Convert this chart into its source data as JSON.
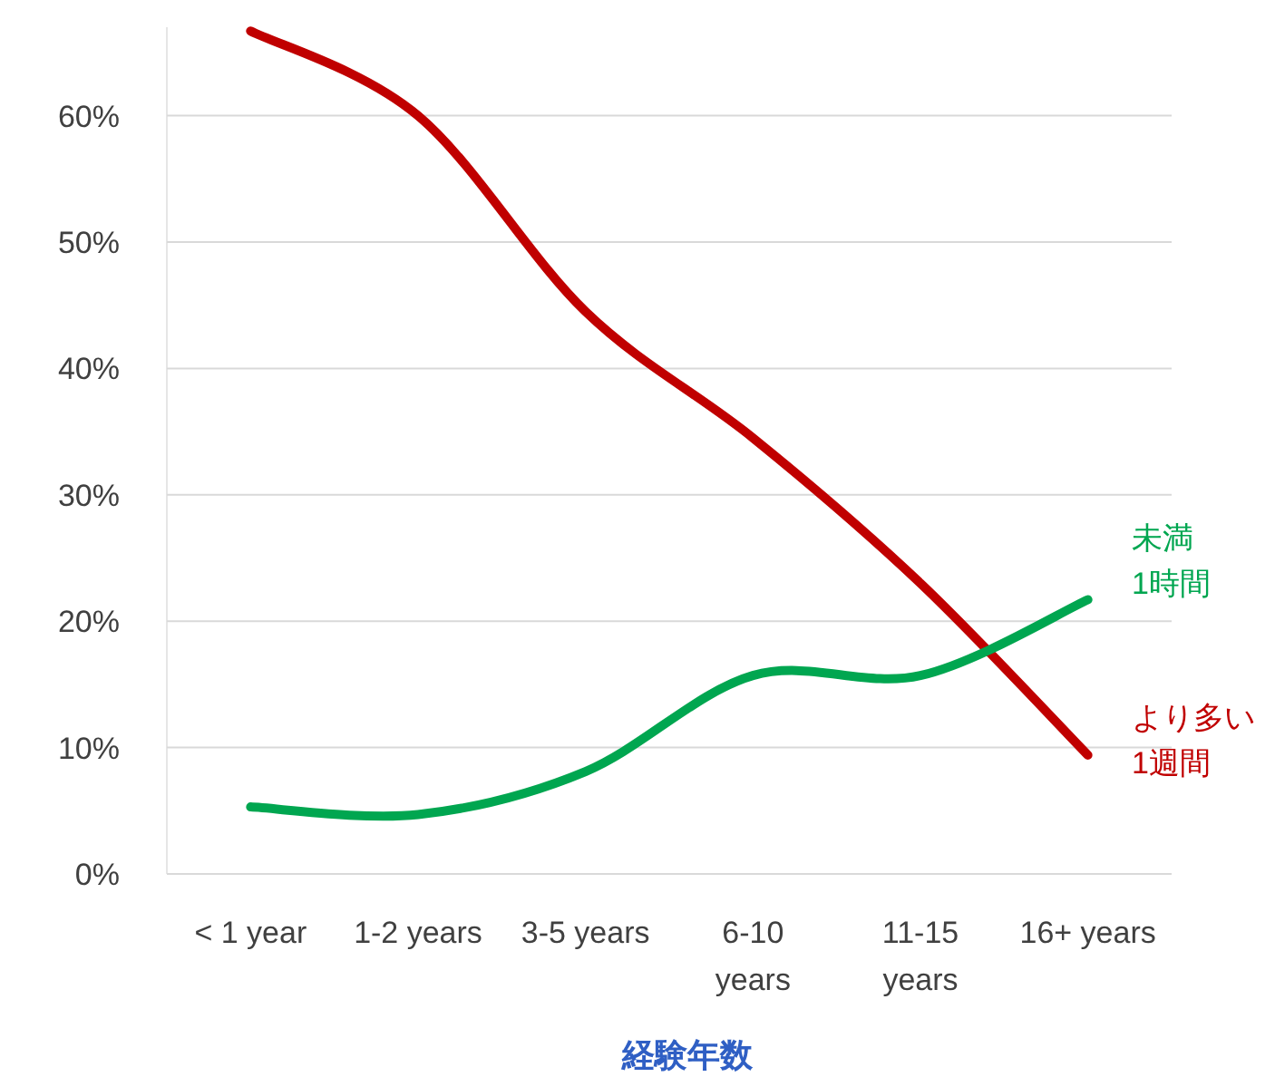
{
  "chart_data": {
    "type": "line",
    "xlabel": "経験年数",
    "categories": [
      "< 1 year",
      "1-2 years",
      "3-5 years",
      "6-10 years",
      "11-15 years",
      "16+ years"
    ],
    "series": [
      {
        "name": "より多い 1週間",
        "color": "#c00000",
        "values": [
          66.7,
          60,
          44.5,
          34.5,
          23,
          9.4
        ]
      },
      {
        "name": "未満 1時間",
        "color": "#00a650",
        "values": [
          5.3,
          4.7,
          8.1,
          15.7,
          15.7,
          21.7
        ]
      }
    ],
    "yticks": [
      {
        "value": 0,
        "label": "0%"
      },
      {
        "value": 10,
        "label": "10%"
      },
      {
        "value": 20,
        "label": "20%"
      },
      {
        "value": 30,
        "label": "30%"
      },
      {
        "value": 40,
        "label": "40%"
      },
      {
        "value": 50,
        "label": "50%"
      },
      {
        "value": 60,
        "label": "60%"
      }
    ],
    "ylim": [
      0,
      67
    ],
    "grid": "y",
    "marker": "none",
    "line_style": "solid"
  }
}
